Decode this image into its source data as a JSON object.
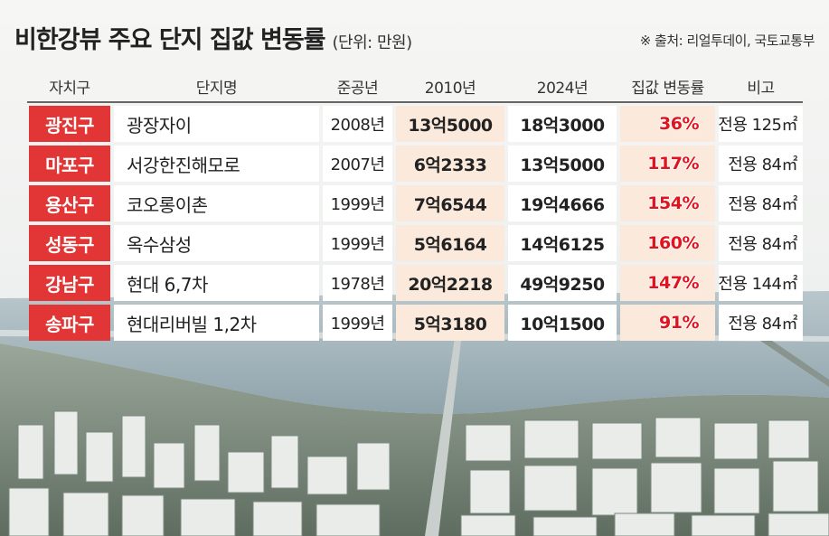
{
  "title": "비한강뷰 주요 단지 집값 변동률",
  "unit": "(단위: 만원)",
  "source": "※ 출처: 리얼투데이, 국토교통부",
  "colors": {
    "district_bg": "#e23636",
    "highlight_bg": "#fbe9dc",
    "rate_text": "#e0141e"
  },
  "chart_data": {
    "type": "table",
    "columns": [
      "자치구",
      "단지명",
      "준공년",
      "2010년",
      "2024년",
      "집값 변동률",
      "비고"
    ],
    "rows": [
      {
        "district": "광진구",
        "complex": "광장자이",
        "year": "2008년",
        "price_2010": "13억5000",
        "price_2024": "18억3000",
        "change": "36%",
        "note": "전용 125㎡"
      },
      {
        "district": "마포구",
        "complex": "서강한진해모로",
        "year": "2007년",
        "price_2010": "6억2333",
        "price_2024": "13억5000",
        "change": "117%",
        "note": "전용 84㎡"
      },
      {
        "district": "용산구",
        "complex": "코오롱이촌",
        "year": "1999년",
        "price_2010": "7억6544",
        "price_2024": "19억4666",
        "change": "154%",
        "note": "전용 84㎡"
      },
      {
        "district": "성동구",
        "complex": "옥수삼성",
        "year": "1999년",
        "price_2010": "5억6164",
        "price_2024": "14억6125",
        "change": "160%",
        "note": "전용 84㎡"
      },
      {
        "district": "강남구",
        "complex": "현대 6,7차",
        "year": "1978년",
        "price_2010": "20억2218",
        "price_2024": "49억9250",
        "change": "147%",
        "note": "전용 144㎡"
      },
      {
        "district": "송파구",
        "complex": "현대리버빌 1,2차",
        "year": "1999년",
        "price_2010": "5억3180",
        "price_2024": "10억1500",
        "change": "91%",
        "note": "전용 84㎡"
      }
    ]
  }
}
